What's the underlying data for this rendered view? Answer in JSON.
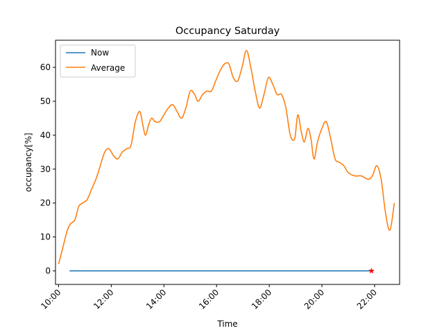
{
  "chart_data": {
    "type": "line",
    "title": "Occupancy Saturday",
    "xlabel": "Time",
    "ylabel": "occupancy[%]",
    "xlim": [
      "09:53",
      "22:57"
    ],
    "ylim": [
      -4,
      68
    ],
    "x_ticks": [
      "10:00",
      "12:00",
      "14:00",
      "16:00",
      "18:00",
      "20:00",
      "22:00"
    ],
    "y_ticks": [
      0,
      10,
      20,
      30,
      40,
      50,
      60
    ],
    "grid": false,
    "legend": "top-left",
    "series": [
      {
        "name": "Now",
        "color": "#1f77b4",
        "x": [
          "10:25",
          "21:53"
        ],
        "y": [
          0,
          0
        ],
        "end_marker": {
          "x": "21:53",
          "y": 0,
          "symbol": "star",
          "color": "#ff0000"
        }
      },
      {
        "name": "Average",
        "color": "#ff7f0e",
        "x": [
          "10:00",
          "10:10",
          "10:20",
          "10:28",
          "10:37",
          "10:46",
          "10:55",
          "11:05",
          "11:15",
          "11:25",
          "11:35",
          "11:45",
          "11:55",
          "12:05",
          "12:15",
          "12:25",
          "12:35",
          "12:45",
          "12:55",
          "13:05",
          "13:12",
          "13:18",
          "13:25",
          "13:32",
          "13:40",
          "13:50",
          "14:00",
          "14:10",
          "14:20",
          "14:30",
          "14:40",
          "14:50",
          "15:00",
          "15:10",
          "15:18",
          "15:28",
          "15:38",
          "15:48",
          "15:58",
          "16:08",
          "16:18",
          "16:28",
          "16:38",
          "16:48",
          "16:58",
          "17:08",
          "17:18",
          "17:28",
          "17:38",
          "17:48",
          "17:58",
          "18:08",
          "18:18",
          "18:28",
          "18:38",
          "18:48",
          "18:58",
          "19:05",
          "19:13",
          "19:20",
          "19:28",
          "19:35",
          "19:42",
          "19:50",
          "20:00",
          "20:10",
          "20:20",
          "20:30",
          "20:40",
          "20:50",
          "21:00",
          "21:15",
          "21:30",
          "21:45",
          "21:55",
          "22:05",
          "22:15",
          "22:25",
          "22:35",
          "22:45"
        ],
        "y": [
          2,
          7,
          12,
          14,
          15,
          19,
          20,
          21,
          24,
          27,
          31,
          35,
          36,
          34,
          33,
          35,
          36,
          37,
          44,
          47,
          43,
          40,
          43,
          45,
          44,
          44,
          46,
          48,
          49,
          47,
          45,
          48,
          53,
          52,
          50,
          52,
          53,
          53,
          56,
          59,
          61,
          61,
          57,
          56,
          60,
          65,
          60,
          53,
          48,
          52,
          57,
          55,
          52,
          52,
          48,
          40,
          39,
          46,
          41,
          38,
          42,
          39,
          33,
          38,
          42,
          44,
          39,
          33,
          32,
          31,
          29,
          28,
          28,
          27,
          28,
          31,
          27,
          17,
          12,
          20
        ]
      }
    ]
  }
}
